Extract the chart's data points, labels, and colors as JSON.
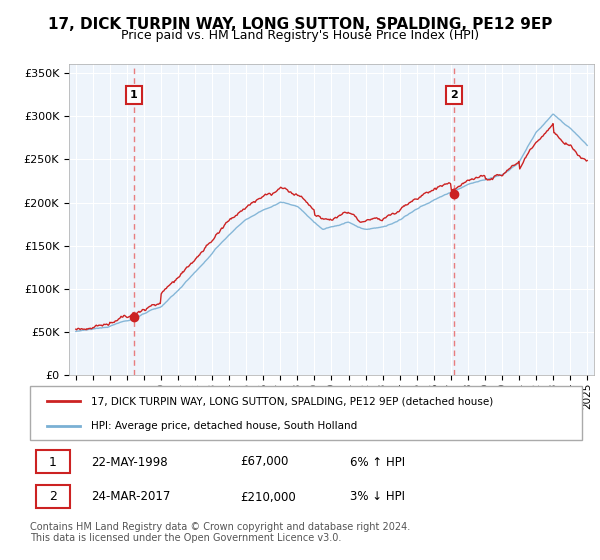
{
  "title": "17, DICK TURPIN WAY, LONG SUTTON, SPALDING, PE12 9EP",
  "subtitle": "Price paid vs. HM Land Registry's House Price Index (HPI)",
  "ylim": [
    0,
    360000
  ],
  "yticks": [
    0,
    50000,
    100000,
    150000,
    200000,
    250000,
    300000,
    350000
  ],
  "ytick_labels": [
    "£0",
    "£50K",
    "£100K",
    "£150K",
    "£200K",
    "£250K",
    "£300K",
    "£350K"
  ],
  "hpi_color": "#7ab0d4",
  "price_color": "#cc2222",
  "marker_color": "#cc2222",
  "vline_color": "#e87070",
  "sale1_year": 1998.4,
  "sale1_price": 67000,
  "sale2_year": 2017.2,
  "sale2_price": 210000,
  "legend_label1": "17, DICK TURPIN WAY, LONG SUTTON, SPALDING, PE12 9EP (detached house)",
  "legend_label2": "HPI: Average price, detached house, South Holland",
  "table_row1": [
    "1",
    "22-MAY-1998",
    "£67,000",
    "6% ↑ HPI"
  ],
  "table_row2": [
    "2",
    "24-MAR-2017",
    "£210,000",
    "3% ↓ HPI"
  ],
  "footer": "Contains HM Land Registry data © Crown copyright and database right 2024.\nThis data is licensed under the Open Government Licence v3.0.",
  "background_color": "#ffffff",
  "plot_bg_color": "#eef4fb",
  "grid_color": "#ffffff",
  "title_fontsize": 11,
  "subtitle_fontsize": 9
}
